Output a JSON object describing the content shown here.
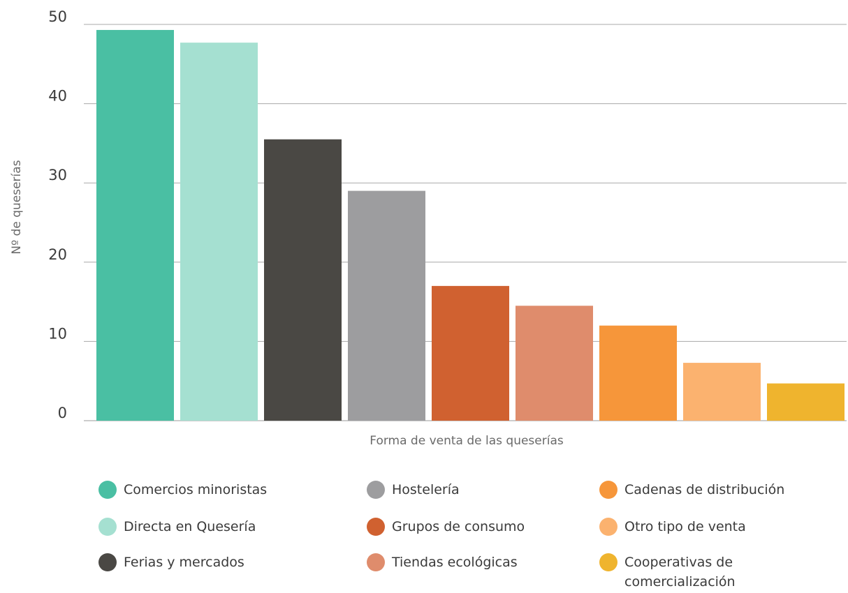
{
  "chart_data": {
    "type": "bar",
    "xlabel": "Forma de venta de las queserías",
    "ylabel": "Nº de queserías",
    "ylim": [
      0,
      50
    ],
    "yticks": [
      0,
      10,
      20,
      30,
      40,
      50
    ],
    "grid": true,
    "legend_placement": "bottom",
    "categories": [
      "Comercios minoristas",
      "Directa en Quesería",
      "Ferias y mercados",
      "Hostelería",
      "Grupos de consumo",
      "Tiendas ecológicas",
      "Cadenas de distribución",
      "Otro tipo de venta",
      "Cooperativas de comercialización"
    ],
    "values": [
      49.3,
      47.7,
      35.5,
      29.0,
      17.0,
      14.5,
      12.0,
      7.3,
      4.7
    ],
    "colors": [
      "#4abfa3",
      "#a5e0d1",
      "#4a4844",
      "#9d9d9f",
      "#d06130",
      "#df8c6c",
      "#f6963a",
      "#fbb26f",
      "#efb42e"
    ]
  },
  "legend": [
    {
      "label": "Comercios minoristas",
      "color": "#4abfa3"
    },
    {
      "label": "Directa en Quesería",
      "color": "#a5e0d1"
    },
    {
      "label": "Ferias y mercados",
      "color": "#4a4844"
    },
    {
      "label": "Hostelería",
      "color": "#9d9d9f"
    },
    {
      "label": "Grupos de consumo",
      "color": "#d06130"
    },
    {
      "label": "Tiendas ecológicas",
      "color": "#df8c6c"
    },
    {
      "label": "Cadenas de distribución",
      "color": "#f6963a"
    },
    {
      "label": "Otro tipo de venta",
      "color": "#fbb26f"
    },
    {
      "label": "Cooperativas de\ncomercialización",
      "color": "#efb42e"
    }
  ]
}
